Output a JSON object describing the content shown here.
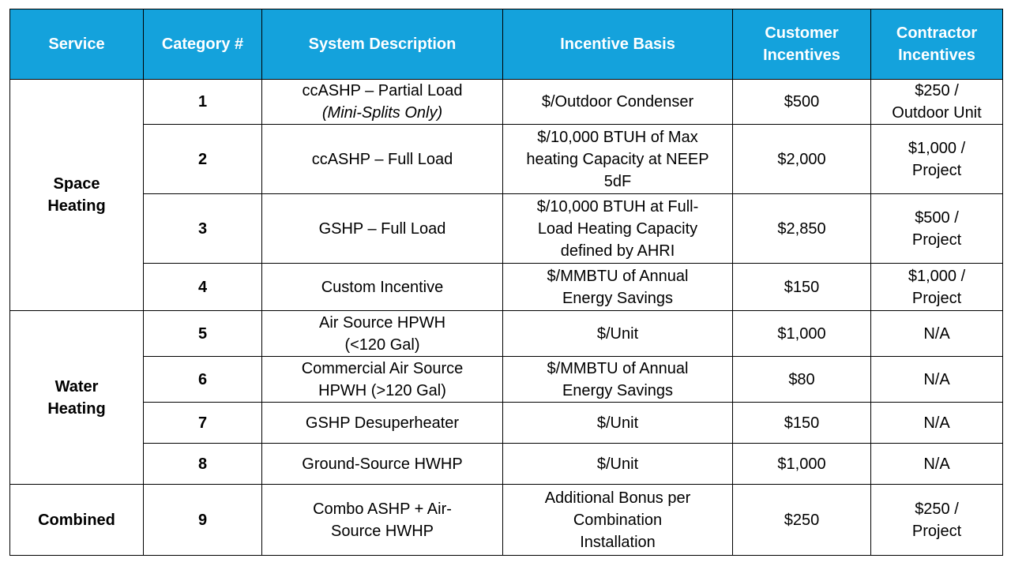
{
  "colors": {
    "header_bg": "#14a2dc",
    "header_text": "#ffffff",
    "border": "#000000"
  },
  "header": {
    "service": "Service",
    "category": "Category #",
    "description": "System Description",
    "basis": "Incentive Basis",
    "customer": [
      "Customer",
      "Incentives"
    ],
    "contractor": [
      "Contractor",
      "Incentives"
    ]
  },
  "groups": {
    "space_heating": [
      "Space",
      "Heating"
    ],
    "water_heating": [
      "Water",
      "Heating"
    ],
    "combined": [
      "Combined"
    ]
  },
  "rows": [
    {
      "category": "1",
      "description": [
        "ccASHP – Partial Load"
      ],
      "description_note": "(Mini-Splits Only)",
      "basis": [
        "$/Outdoor Condenser"
      ],
      "customer": "$500",
      "contractor": [
        "$250 /",
        "Outdoor Unit"
      ]
    },
    {
      "category": "2",
      "description": [
        "ccASHP – Full Load"
      ],
      "basis": [
        "$/10,000 BTUH of Max",
        "heating Capacity at NEEP",
        "5dF"
      ],
      "customer": "$2,000",
      "contractor": [
        "$1,000 /",
        "Project"
      ]
    },
    {
      "category": "3",
      "description": [
        "GSHP – Full Load"
      ],
      "basis": [
        "$/10,000 BTUH at Full-",
        "Load Heating Capacity",
        "defined by AHRI"
      ],
      "customer": "$2,850",
      "contractor": [
        "$500 /",
        "Project"
      ]
    },
    {
      "category": "4",
      "description": [
        "Custom Incentive"
      ],
      "basis": [
        "$/MMBTU of Annual",
        "Energy Savings"
      ],
      "customer": "$150",
      "contractor": [
        "$1,000 /",
        "Project"
      ]
    },
    {
      "category": "5",
      "description": [
        "Air Source HPWH",
        "(<120 Gal)"
      ],
      "basis": [
        "$/Unit"
      ],
      "customer": "$1,000",
      "contractor": [
        "N/A"
      ]
    },
    {
      "category": "6",
      "description": [
        "Commercial Air Source",
        "HPWH (>120 Gal)"
      ],
      "basis": [
        "$/MMBTU of Annual",
        "Energy Savings"
      ],
      "customer": "$80",
      "contractor": [
        "N/A"
      ]
    },
    {
      "category": "7",
      "description": [
        "GSHP Desuperheater"
      ],
      "basis": [
        "$/Unit"
      ],
      "customer": "$150",
      "contractor": [
        "N/A"
      ]
    },
    {
      "category": "8",
      "description": [
        "Ground-Source HWHP"
      ],
      "basis": [
        "$/Unit"
      ],
      "customer": "$1,000",
      "contractor": [
        "N/A"
      ]
    },
    {
      "category": "9",
      "description": [
        "Combo ASHP + Air-",
        "Source HWHP"
      ],
      "basis": [
        "Additional Bonus per",
        "Combination",
        "Installation"
      ],
      "customer": "$250",
      "contractor": [
        "$250 /",
        "Project"
      ]
    }
  ]
}
